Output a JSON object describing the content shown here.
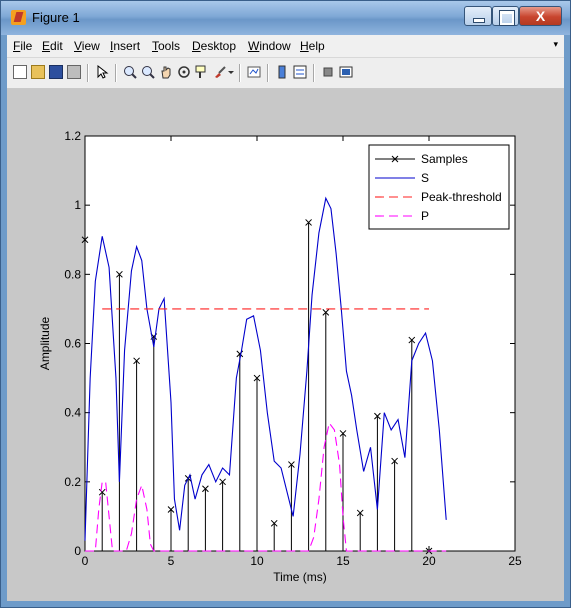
{
  "window": {
    "title": "Figure 1",
    "close_label": "X"
  },
  "menu": {
    "items": [
      "File",
      "Edit",
      "View",
      "Insert",
      "Tools",
      "Desktop",
      "Window",
      "Help"
    ],
    "overflow_glyph": "▾"
  },
  "toolbar": {
    "icons": [
      "new-figure-icon",
      "open-file-icon",
      "save-icon",
      "print-icon",
      "select-arrow-icon",
      "zoom-in-icon",
      "zoom-out-icon",
      "pan-icon",
      "rotate-icon",
      "data-cursor-icon",
      "brush-icon",
      "brush-dropdown-icon",
      "link-plot-icon",
      "colorbar-icon",
      "legend-icon",
      "hide-plot-tools-icon",
      "show-plot-tools-icon"
    ]
  },
  "chart_data": {
    "type": "line",
    "xlabel": "Time (ms)",
    "ylabel": "Amplitude",
    "xlim": [
      0,
      25
    ],
    "ylim": [
      0,
      1.2
    ],
    "xticks": [
      "0",
      "5",
      "10",
      "15",
      "20",
      "25"
    ],
    "yticks": [
      "0",
      "0.2",
      "0.4",
      "0.6",
      "0.8",
      "1",
      "1.2"
    ],
    "grid": false,
    "legend_position": "top-right",
    "series": [
      {
        "name": "Samples",
        "style": "stem-x",
        "color": "#000000",
        "x": [
          0,
          1,
          2,
          3,
          4,
          5,
          6,
          7,
          8,
          9,
          10,
          11,
          12,
          13,
          14,
          15,
          16,
          17,
          18,
          19,
          20
        ],
        "y": [
          0.9,
          0.17,
          0.8,
          0.55,
          0.62,
          0.12,
          0.21,
          0.18,
          0.2,
          0.57,
          0.5,
          0.08,
          0.25,
          0.95,
          0.69,
          0.34,
          0.11,
          0.39,
          0.26,
          0.61,
          0.0
        ]
      },
      {
        "name": "S",
        "style": "line",
        "color": "#0000cc",
        "x": [
          0,
          0.3,
          0.6,
          1.0,
          1.4,
          1.8,
          2.0,
          2.3,
          2.7,
          3.0,
          3.3,
          3.6,
          4.0,
          4.3,
          4.6,
          5.0,
          5.2,
          5.5,
          5.8,
          6.1,
          6.4,
          6.8,
          7.2,
          7.6,
          8.0,
          8.4,
          8.8,
          9.1,
          9.4,
          9.8,
          10.2,
          10.6,
          11.0,
          11.4,
          11.8,
          12.1,
          12.5,
          12.9,
          13.2,
          13.6,
          14.0,
          14.3,
          14.6,
          14.9,
          15.2,
          15.5,
          15.8,
          16.2,
          16.6,
          17.0,
          17.4,
          17.8,
          18.2,
          18.6,
          19.0,
          19.4,
          19.8,
          20.2,
          20.6,
          21.0
        ],
        "y": [
          0.03,
          0.5,
          0.78,
          0.91,
          0.82,
          0.5,
          0.2,
          0.58,
          0.81,
          0.88,
          0.84,
          0.7,
          0.59,
          0.7,
          0.73,
          0.43,
          0.15,
          0.06,
          0.19,
          0.22,
          0.15,
          0.22,
          0.25,
          0.2,
          0.24,
          0.22,
          0.5,
          0.58,
          0.67,
          0.68,
          0.58,
          0.4,
          0.26,
          0.24,
          0.16,
          0.1,
          0.28,
          0.52,
          0.74,
          0.92,
          1.02,
          0.99,
          0.86,
          0.7,
          0.52,
          0.45,
          0.35,
          0.23,
          0.3,
          0.12,
          0.4,
          0.35,
          0.38,
          0.27,
          0.55,
          0.6,
          0.63,
          0.55,
          0.35,
          0.09
        ]
      },
      {
        "name": "Peak-threshold",
        "style": "dashed",
        "color": "#ff2020",
        "x": [
          1,
          20
        ],
        "y": [
          0.7,
          0.7
        ]
      },
      {
        "name": "P",
        "style": "dashed",
        "color": "#ff00ff",
        "x": [
          0,
          0.6,
          0.8,
          1.0,
          1.2,
          1.4,
          1.6,
          2.4,
          2.7,
          3.0,
          3.3,
          3.6,
          3.8,
          4.0,
          13.0,
          13.3,
          13.6,
          13.9,
          14.2,
          14.5,
          14.8,
          15.0,
          15.2,
          21.0
        ],
        "y": [
          0,
          0,
          0.12,
          0.2,
          0.2,
          0.1,
          0,
          0,
          0.05,
          0.15,
          0.19,
          0.12,
          0.02,
          0,
          0,
          0.04,
          0.15,
          0.3,
          0.37,
          0.35,
          0.25,
          0.1,
          0,
          0
        ]
      }
    ]
  }
}
